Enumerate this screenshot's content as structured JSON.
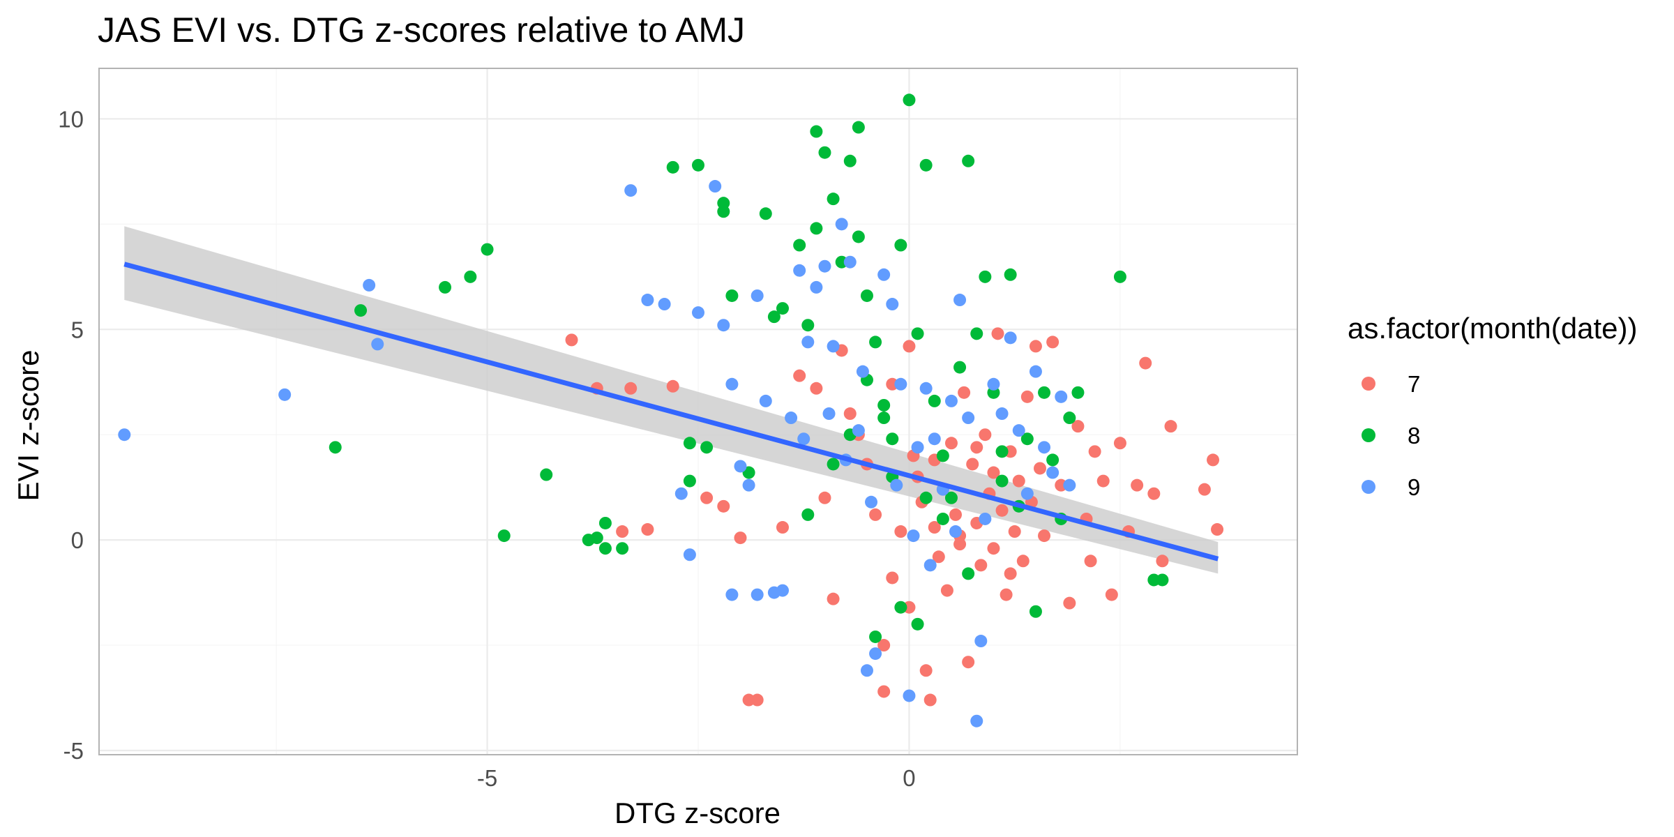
{
  "chart_data": {
    "type": "scatter",
    "title": "JAS EVI vs. DTG z-scores relative to AMJ",
    "xlabel": "DTG z-score",
    "ylabel": "EVI z-score",
    "xlim": [
      -9.6,
      4.6
    ],
    "ylim": [
      -5.1,
      11.2
    ],
    "x_ticks": [
      -5,
      0
    ],
    "y_ticks": [
      -5,
      0,
      5,
      10
    ],
    "grid": true,
    "legend": {
      "title": "as.factor(month(date))",
      "placement": "right",
      "entries": [
        {
          "label": "7",
          "color": "#F8766D"
        },
        {
          "label": "8",
          "color": "#00BA38"
        },
        {
          "label": "9",
          "color": "#619CFF"
        }
      ]
    },
    "trend_line": {
      "color": "#3366FF",
      "ribbon_color": "#cccccc",
      "x": [
        -9.3,
        3.66
      ],
      "y": [
        6.55,
        -0.45
      ],
      "lower": [
        5.7,
        -0.8
      ],
      "upper": [
        7.45,
        -0.05
      ]
    },
    "series": [
      {
        "name": "7",
        "color": "#F8766D",
        "points": [
          [
            -4.0,
            4.75
          ],
          [
            -3.7,
            3.6
          ],
          [
            -3.3,
            3.6
          ],
          [
            -2.8,
            3.65
          ],
          [
            -3.4,
            0.2
          ],
          [
            -3.1,
            0.25
          ],
          [
            -2.4,
            1.0
          ],
          [
            -2.2,
            0.8
          ],
          [
            -2.0,
            0.05
          ],
          [
            -1.8,
            -3.8
          ],
          [
            -1.9,
            -3.8
          ],
          [
            -1.5,
            0.3
          ],
          [
            -1.3,
            3.9
          ],
          [
            -1.1,
            3.6
          ],
          [
            -1.0,
            1.0
          ],
          [
            -0.9,
            -1.4
          ],
          [
            -0.8,
            4.5
          ],
          [
            -0.7,
            3.0
          ],
          [
            -0.6,
            2.5
          ],
          [
            -0.5,
            1.8
          ],
          [
            -0.4,
            0.6
          ],
          [
            -0.3,
            -2.5
          ],
          [
            -0.3,
            -3.6
          ],
          [
            -0.2,
            3.7
          ],
          [
            0.0,
            4.6
          ],
          [
            0.05,
            2.0
          ],
          [
            0.1,
            1.5
          ],
          [
            0.15,
            0.9
          ],
          [
            0.2,
            -3.1
          ],
          [
            0.25,
            -3.8
          ],
          [
            0.3,
            0.3
          ],
          [
            0.35,
            -0.4
          ],
          [
            0.4,
            1.2
          ],
          [
            0.45,
            -1.2
          ],
          [
            0.5,
            2.3
          ],
          [
            0.55,
            0.6
          ],
          [
            0.6,
            -0.1
          ],
          [
            0.65,
            3.5
          ],
          [
            0.7,
            -2.9
          ],
          [
            0.75,
            1.8
          ],
          [
            0.8,
            0.4
          ],
          [
            0.85,
            -0.6
          ],
          [
            0.9,
            2.5
          ],
          [
            0.95,
            1.1
          ],
          [
            1.0,
            -0.2
          ],
          [
            1.05,
            4.9
          ],
          [
            1.1,
            0.7
          ],
          [
            1.15,
            -1.3
          ],
          [
            1.2,
            2.1
          ],
          [
            1.25,
            0.2
          ],
          [
            1.3,
            1.4
          ],
          [
            1.35,
            -0.5
          ],
          [
            1.4,
            3.4
          ],
          [
            1.45,
            0.9
          ],
          [
            1.5,
            4.6
          ],
          [
            1.55,
            1.7
          ],
          [
            1.6,
            0.1
          ],
          [
            1.7,
            4.7
          ],
          [
            1.8,
            1.3
          ],
          [
            1.9,
            -1.5
          ],
          [
            2.0,
            2.7
          ],
          [
            2.1,
            0.5
          ],
          [
            2.15,
            -0.5
          ],
          [
            2.2,
            2.1
          ],
          [
            2.3,
            1.4
          ],
          [
            2.4,
            -1.3
          ],
          [
            2.5,
            2.3
          ],
          [
            2.6,
            0.2
          ],
          [
            2.7,
            1.3
          ],
          [
            2.8,
            4.2
          ],
          [
            2.9,
            1.1
          ],
          [
            3.0,
            -0.5
          ],
          [
            3.1,
            2.7
          ],
          [
            3.5,
            1.2
          ],
          [
            3.6,
            1.9
          ],
          [
            3.65,
            0.25
          ],
          [
            0.3,
            1.9
          ],
          [
            0.6,
            0.1
          ],
          [
            0.8,
            2.2
          ],
          [
            1.0,
            1.6
          ],
          [
            1.2,
            -0.8
          ],
          [
            -0.1,
            0.2
          ],
          [
            -0.2,
            -0.9
          ],
          [
            0.0,
            -1.6
          ]
        ]
      },
      {
        "name": "8",
        "color": "#00BA38",
        "points": [
          [
            -6.8,
            2.2
          ],
          [
            -6.5,
            5.45
          ],
          [
            -5.5,
            6.0
          ],
          [
            -5.2,
            6.25
          ],
          [
            -5.0,
            6.9
          ],
          [
            -4.8,
            0.1
          ],
          [
            -4.3,
            1.55
          ],
          [
            -3.8,
            0.0
          ],
          [
            -3.7,
            0.05
          ],
          [
            -3.6,
            -0.2
          ],
          [
            -3.6,
            0.4
          ],
          [
            -3.4,
            -0.2
          ],
          [
            -2.8,
            8.85
          ],
          [
            -2.5,
            8.9
          ],
          [
            -2.6,
            2.3
          ],
          [
            -2.6,
            1.4
          ],
          [
            -2.4,
            2.2
          ],
          [
            -2.2,
            8.0
          ],
          [
            -2.2,
            7.8
          ],
          [
            -2.1,
            5.8
          ],
          [
            -1.9,
            1.6
          ],
          [
            -1.7,
            7.75
          ],
          [
            -1.6,
            5.3
          ],
          [
            -1.5,
            5.5
          ],
          [
            -1.3,
            7.0
          ],
          [
            -1.2,
            5.1
          ],
          [
            -1.1,
            7.4
          ],
          [
            -1.1,
            9.7
          ],
          [
            -1.0,
            9.2
          ],
          [
            -0.9,
            8.1
          ],
          [
            -0.8,
            6.6
          ],
          [
            -0.7,
            9.0
          ],
          [
            -0.6,
            9.8
          ],
          [
            -0.6,
            7.2
          ],
          [
            -0.5,
            5.8
          ],
          [
            -0.4,
            4.7
          ],
          [
            -0.3,
            3.2
          ],
          [
            -0.2,
            1.5
          ],
          [
            -0.1,
            7.0
          ],
          [
            0.0,
            10.45
          ],
          [
            0.1,
            4.9
          ],
          [
            0.2,
            8.9
          ],
          [
            0.3,
            3.3
          ],
          [
            0.4,
            2.0
          ],
          [
            0.5,
            1.0
          ],
          [
            0.6,
            4.1
          ],
          [
            0.7,
            9.0
          ],
          [
            0.8,
            4.9
          ],
          [
            0.9,
            6.25
          ],
          [
            1.0,
            3.5
          ],
          [
            1.1,
            2.1
          ],
          [
            1.2,
            6.3
          ],
          [
            1.3,
            0.8
          ],
          [
            1.4,
            2.4
          ],
          [
            1.5,
            -1.7
          ],
          [
            1.6,
            3.5
          ],
          [
            1.7,
            1.9
          ],
          [
            1.8,
            0.5
          ],
          [
            1.9,
            2.9
          ],
          [
            2.0,
            3.5
          ],
          [
            2.5,
            6.25
          ],
          [
            2.9,
            -0.95
          ],
          [
            3.0,
            -0.95
          ],
          [
            -0.4,
            -2.3
          ],
          [
            0.1,
            -2.0
          ],
          [
            -0.1,
            -1.6
          ],
          [
            -0.5,
            3.8
          ],
          [
            -0.3,
            2.9
          ],
          [
            -0.7,
            2.5
          ],
          [
            -0.9,
            1.8
          ],
          [
            -1.2,
            0.6
          ],
          [
            0.4,
            0.5
          ],
          [
            0.7,
            -0.8
          ],
          [
            1.1,
            1.4
          ],
          [
            -0.2,
            2.4
          ],
          [
            0.2,
            1.0
          ]
        ]
      },
      {
        "name": "9",
        "color": "#619CFF",
        "points": [
          [
            -9.3,
            2.5
          ],
          [
            -7.4,
            3.45
          ],
          [
            -6.4,
            6.05
          ],
          [
            -6.3,
            4.65
          ],
          [
            -3.3,
            8.3
          ],
          [
            -3.1,
            5.7
          ],
          [
            -2.9,
            5.6
          ],
          [
            -2.7,
            1.1
          ],
          [
            -2.5,
            5.4
          ],
          [
            -2.3,
            8.4
          ],
          [
            -2.2,
            5.1
          ],
          [
            -2.1,
            3.7
          ],
          [
            -2.0,
            1.75
          ],
          [
            -1.9,
            1.3
          ],
          [
            -1.8,
            5.8
          ],
          [
            -1.7,
            3.3
          ],
          [
            -1.5,
            -1.2
          ],
          [
            -1.4,
            2.9
          ],
          [
            -1.3,
            6.4
          ],
          [
            -1.2,
            4.7
          ],
          [
            -1.1,
            6.0
          ],
          [
            -1.0,
            6.5
          ],
          [
            -0.9,
            4.6
          ],
          [
            -0.8,
            7.5
          ],
          [
            -0.7,
            6.6
          ],
          [
            -0.6,
            2.6
          ],
          [
            -0.5,
            -3.1
          ],
          [
            -0.4,
            -2.7
          ],
          [
            -0.3,
            6.3
          ],
          [
            -0.2,
            5.6
          ],
          [
            -0.1,
            3.7
          ],
          [
            0.0,
            -3.7
          ],
          [
            0.1,
            2.2
          ],
          [
            0.2,
            3.6
          ],
          [
            0.3,
            2.4
          ],
          [
            0.4,
            1.2
          ],
          [
            0.5,
            3.3
          ],
          [
            0.6,
            5.7
          ],
          [
            0.7,
            2.9
          ],
          [
            0.8,
            -4.3
          ],
          [
            0.85,
            -2.4
          ],
          [
            0.9,
            0.5
          ],
          [
            1.0,
            3.7
          ],
          [
            1.1,
            3.0
          ],
          [
            1.2,
            4.8
          ],
          [
            1.3,
            2.6
          ],
          [
            1.4,
            1.1
          ],
          [
            1.5,
            4.0
          ],
          [
            1.6,
            2.2
          ],
          [
            1.7,
            1.6
          ],
          [
            1.8,
            3.4
          ],
          [
            1.9,
            1.3
          ],
          [
            -2.6,
            -0.35
          ],
          [
            -2.1,
            -1.3
          ],
          [
            -1.8,
            -1.3
          ],
          [
            -1.6,
            -1.25
          ],
          [
            -0.95,
            3.0
          ],
          [
            -0.75,
            1.9
          ],
          [
            -0.45,
            0.9
          ],
          [
            -0.15,
            1.3
          ],
          [
            0.05,
            0.1
          ],
          [
            0.25,
            -0.6
          ],
          [
            0.55,
            0.2
          ],
          [
            -1.25,
            2.4
          ],
          [
            -0.55,
            4.0
          ]
        ]
      }
    ]
  }
}
